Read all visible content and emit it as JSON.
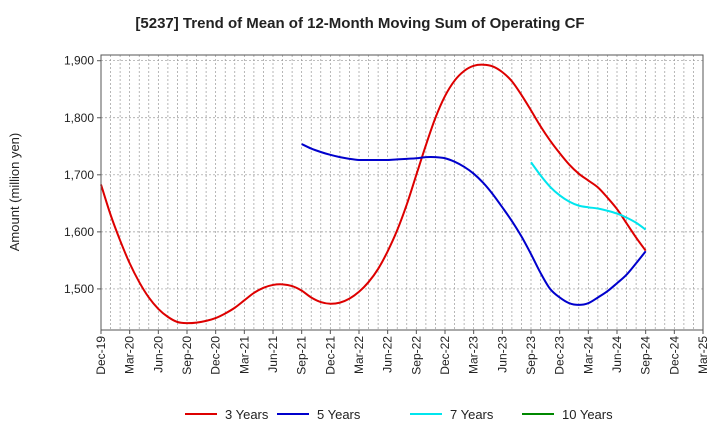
{
  "chart_data": {
    "type": "line",
    "title": "[5237]  Trend of Mean of 12-Month Moving Sum of Operating CF",
    "xlabel": "",
    "ylabel": "Amount (million yen)",
    "ylim": [
      1428,
      1910
    ],
    "yticks": [
      1500,
      1600,
      1700,
      1800,
      1900
    ],
    "ytick_labels": [
      "1,500",
      "1,600",
      "1,700",
      "1,800",
      "1,900"
    ],
    "x_labels": [
      "Dec-19",
      "Mar-20",
      "Jun-20",
      "Sep-20",
      "Dec-20",
      "Mar-21",
      "Jun-21",
      "Sep-21",
      "Dec-21",
      "Mar-22",
      "Jun-22",
      "Sep-22",
      "Dec-22",
      "Mar-23",
      "Jun-23",
      "Sep-23",
      "Dec-23",
      "Mar-24",
      "Jun-24",
      "Sep-24",
      "Dec-24",
      "Mar-25"
    ],
    "grid": true,
    "legend_position": "bottom",
    "series": [
      {
        "name": "3 Years",
        "color": "#dd0000",
        "start_index": 0,
        "values": [
          1683,
          1630,
          1585,
          1545,
          1512,
          1485,
          1465,
          1451,
          1442,
          1440,
          1441,
          1444,
          1449,
          1457,
          1467,
          1480,
          1493,
          1502,
          1507,
          1508,
          1505,
          1497,
          1485,
          1477,
          1474,
          1476,
          1483,
          1495,
          1512,
          1535,
          1566,
          1603,
          1648,
          1700,
          1752,
          1800,
          1838,
          1865,
          1882,
          1891,
          1893,
          1890,
          1880,
          1864,
          1840,
          1813,
          1785,
          1760,
          1738,
          1718,
          1702,
          1690,
          1678,
          1660,
          1640,
          1615,
          1590,
          1567
        ]
      },
      {
        "name": "5 Years",
        "color": "#0000cc",
        "start_index": 21,
        "values": [
          1754,
          1746,
          1740,
          1735,
          1731,
          1728,
          1726,
          1726,
          1726,
          1726,
          1727,
          1728,
          1729,
          1731,
          1731,
          1729,
          1723,
          1714,
          1702,
          1686,
          1666,
          1643,
          1619,
          1592,
          1561,
          1528,
          1500,
          1485,
          1475,
          1472,
          1475,
          1485,
          1496,
          1510,
          1525,
          1545,
          1566
        ]
      },
      {
        "name": "7 Years",
        "color": "#00e5ee",
        "start_index": 45,
        "values": [
          1722,
          1699,
          1679,
          1664,
          1653,
          1646,
          1643,
          1641,
          1637,
          1632,
          1625,
          1616,
          1604
        ]
      },
      {
        "name": "10 Years",
        "color": "#008800",
        "start_index": 0,
        "values": []
      }
    ]
  }
}
